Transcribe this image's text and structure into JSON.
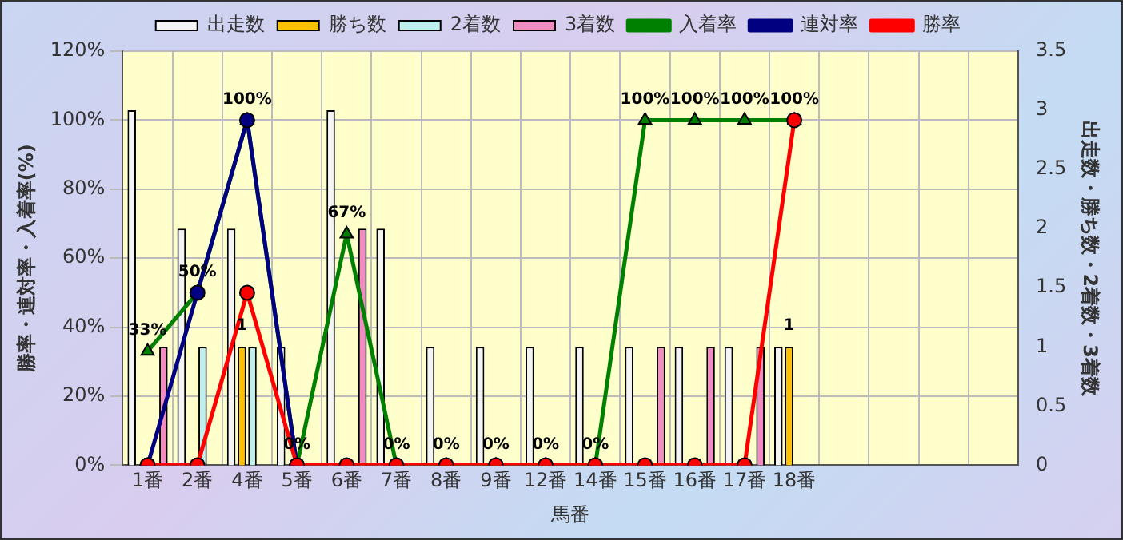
{
  "chart_data": {
    "type": "bar",
    "xlabel": "馬番",
    "ylabel": "勝率・連対率・入着率(%)",
    "y2label": "出走数・勝ち数・2着数・3着数",
    "categories": [
      "1番",
      "2番",
      "4番",
      "5番",
      "6番",
      "7番",
      "8番",
      "9番",
      "12番",
      "14番",
      "15番",
      "16番",
      "17番",
      "18番",
      null,
      null,
      null,
      null
    ],
    "series": [
      {
        "name": "出走数",
        "axis": "y2",
        "color": "#f4f4f4",
        "values": [
          3,
          2,
          2,
          1,
          3,
          2,
          1,
          1,
          1,
          1,
          1,
          1,
          1,
          1,
          null,
          null,
          null,
          null
        ]
      },
      {
        "name": "勝ち数",
        "axis": "y2",
        "color": "#ffc000",
        "values": [
          0,
          0,
          1,
          0,
          0,
          0,
          0,
          0,
          0,
          0,
          0,
          0,
          0,
          1,
          null,
          null,
          null,
          null
        ],
        "value_labels": [
          null,
          null,
          "1",
          null,
          null,
          null,
          null,
          null,
          null,
          null,
          null,
          null,
          null,
          "1",
          null,
          null,
          null,
          null
        ]
      },
      {
        "name": "2着数",
        "axis": "y2",
        "color": "#bff0f0",
        "values": [
          0,
          1,
          1,
          0,
          0,
          0,
          0,
          0,
          0,
          0,
          0,
          0,
          0,
          0,
          null,
          null,
          null,
          null
        ]
      },
      {
        "name": "3着数",
        "axis": "y2",
        "color": "#f08cc0",
        "values": [
          1,
          0,
          0,
          0,
          2,
          0,
          0,
          0,
          0,
          0,
          1,
          1,
          1,
          0,
          null,
          null,
          null,
          null
        ]
      },
      {
        "name": "入着率",
        "type": "line",
        "marker": "triangle",
        "color": "#008000",
        "values": [
          33,
          50,
          100,
          0,
          67,
          0,
          0,
          0,
          0,
          0,
          100,
          100,
          100,
          100,
          null,
          null,
          null,
          null
        ],
        "value_labels": [
          "33%",
          "50%",
          "100%",
          "0%",
          "67%",
          "0%",
          "0%",
          "0%",
          "0%",
          "0%",
          "100%",
          "100%",
          "100%",
          "100%",
          null,
          null,
          null,
          null
        ]
      },
      {
        "name": "連対率",
        "type": "line",
        "marker": "circle",
        "color": "#000080",
        "values": [
          0,
          50,
          100,
          0,
          null,
          null,
          null,
          null,
          null,
          null,
          null,
          null,
          null,
          null,
          null,
          null,
          null,
          null
        ]
      },
      {
        "name": "勝率",
        "type": "line",
        "marker": "circle",
        "color": "#ff0000",
        "values": [
          0,
          0,
          50,
          0,
          0,
          0,
          0,
          0,
          0,
          0,
          0,
          0,
          0,
          100,
          null,
          null,
          null,
          null
        ]
      }
    ],
    "ylim": [
      0,
      120
    ],
    "yticks": [
      {
        "value": 0,
        "label": "0%"
      },
      {
        "value": 20,
        "label": "20%"
      },
      {
        "value": 40,
        "label": "40%"
      },
      {
        "value": 60,
        "label": "60%"
      },
      {
        "value": 80,
        "label": "80%"
      },
      {
        "value": 100,
        "label": "100%"
      },
      {
        "value": 120,
        "label": "120%"
      }
    ],
    "y2lim": [
      0,
      3.5
    ],
    "y2ticks": [
      0,
      0.5,
      1,
      1.5,
      2,
      2.5,
      3,
      3.5
    ],
    "grid": true,
    "legend": "top",
    "line_style": "solid"
  }
}
